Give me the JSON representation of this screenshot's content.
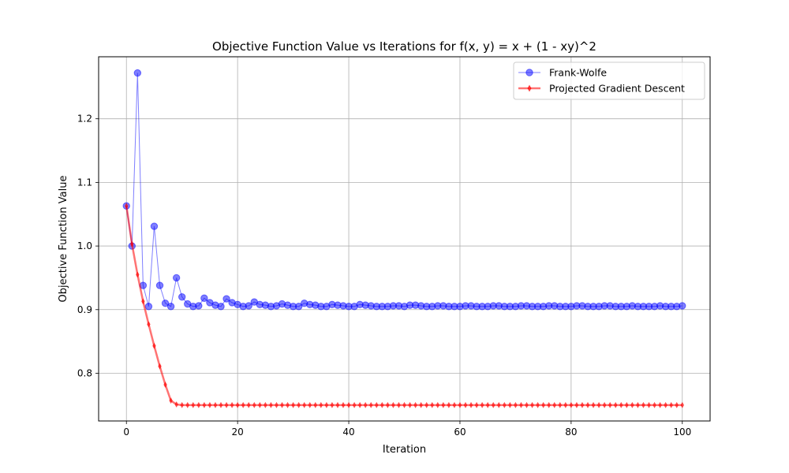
{
  "chart_data": {
    "type": "line",
    "title": "Objective Function Value vs Iterations for f(x, y) = x + (1 - xy)^2",
    "xlabel": "Iteration",
    "ylabel": "Objective Function Value",
    "xlim": [
      -5,
      105
    ],
    "ylim": [
      0.725,
      1.2975
    ],
    "xticks": [
      0,
      20,
      40,
      60,
      80,
      100
    ],
    "xtick_labels": [
      "0",
      "20",
      "40",
      "60",
      "80",
      "100"
    ],
    "yticks": [
      0.8,
      0.9,
      1.0,
      1.1,
      1.2
    ],
    "ytick_labels": [
      "0.8",
      "0.9",
      "1.0",
      "1.1",
      "1.2"
    ],
    "grid": true,
    "legend_position": "upper right",
    "series": [
      {
        "name": "Frank-Wolfe",
        "color": "#0000ff",
        "marker": "circle",
        "x": [
          0,
          1,
          2,
          3,
          4,
          5,
          6,
          7,
          8,
          9,
          10,
          11,
          12,
          13,
          14,
          15,
          16,
          17,
          18,
          19,
          20,
          21,
          22,
          23,
          24,
          25,
          26,
          27,
          28,
          29,
          30,
          31,
          32,
          33,
          34,
          35,
          36,
          37,
          38,
          39,
          40,
          41,
          42,
          43,
          44,
          45,
          46,
          47,
          48,
          49,
          50,
          51,
          52,
          53,
          54,
          55,
          56,
          57,
          58,
          59,
          60,
          61,
          62,
          63,
          64,
          65,
          66,
          67,
          68,
          69,
          70,
          71,
          72,
          73,
          74,
          75,
          76,
          77,
          78,
          79,
          80,
          81,
          82,
          83,
          84,
          85,
          86,
          87,
          88,
          89,
          90,
          91,
          92,
          93,
          94,
          95,
          96,
          97,
          98,
          99,
          100
        ],
        "y": [
          1.063,
          1.0,
          1.272,
          0.938,
          0.905,
          1.031,
          0.938,
          0.91,
          0.905,
          0.95,
          0.92,
          0.909,
          0.905,
          0.906,
          0.918,
          0.911,
          0.907,
          0.905,
          0.917,
          0.911,
          0.908,
          0.905,
          0.906,
          0.912,
          0.908,
          0.907,
          0.905,
          0.906,
          0.909,
          0.907,
          0.905,
          0.905,
          0.91,
          0.908,
          0.907,
          0.905,
          0.905,
          0.908,
          0.907,
          0.906,
          0.905,
          0.905,
          0.908,
          0.907,
          0.906,
          0.905,
          0.905,
          0.905,
          0.906,
          0.906,
          0.905,
          0.907,
          0.907,
          0.906,
          0.905,
          0.905,
          0.906,
          0.906,
          0.905,
          0.905,
          0.905,
          0.906,
          0.906,
          0.905,
          0.905,
          0.905,
          0.906,
          0.906,
          0.905,
          0.905,
          0.905,
          0.906,
          0.906,
          0.905,
          0.905,
          0.905,
          0.906,
          0.906,
          0.905,
          0.905,
          0.905,
          0.906,
          0.906,
          0.905,
          0.905,
          0.905,
          0.906,
          0.906,
          0.905,
          0.905,
          0.905,
          0.906,
          0.905,
          0.905,
          0.905,
          0.905,
          0.906,
          0.905,
          0.905,
          0.905,
          0.906
        ]
      },
      {
        "name": "Projected Gradient Descent",
        "color": "#ff0000",
        "marker": "diamond",
        "x": [
          0,
          1,
          2,
          3,
          4,
          5,
          6,
          7,
          8,
          9,
          10,
          11,
          12,
          13,
          14,
          15,
          16,
          17,
          18,
          19,
          20,
          21,
          22,
          23,
          24,
          25,
          26,
          27,
          28,
          29,
          30,
          31,
          32,
          33,
          34,
          35,
          36,
          37,
          38,
          39,
          40,
          41,
          42,
          43,
          44,
          45,
          46,
          47,
          48,
          49,
          50,
          51,
          52,
          53,
          54,
          55,
          56,
          57,
          58,
          59,
          60,
          61,
          62,
          63,
          64,
          65,
          66,
          67,
          68,
          69,
          70,
          71,
          72,
          73,
          74,
          75,
          76,
          77,
          78,
          79,
          80,
          81,
          82,
          83,
          84,
          85,
          86,
          87,
          88,
          89,
          90,
          91,
          92,
          93,
          94,
          95,
          96,
          97,
          98,
          99,
          100
        ],
        "y": [
          1.063,
          1.003,
          0.955,
          0.913,
          0.877,
          0.843,
          0.811,
          0.782,
          0.757,
          0.751,
          0.75,
          0.75,
          0.75,
          0.75,
          0.75,
          0.75,
          0.75,
          0.75,
          0.75,
          0.75,
          0.75,
          0.75,
          0.75,
          0.75,
          0.75,
          0.75,
          0.75,
          0.75,
          0.75,
          0.75,
          0.75,
          0.75,
          0.75,
          0.75,
          0.75,
          0.75,
          0.75,
          0.75,
          0.75,
          0.75,
          0.75,
          0.75,
          0.75,
          0.75,
          0.75,
          0.75,
          0.75,
          0.75,
          0.75,
          0.75,
          0.75,
          0.75,
          0.75,
          0.75,
          0.75,
          0.75,
          0.75,
          0.75,
          0.75,
          0.75,
          0.75,
          0.75,
          0.75,
          0.75,
          0.75,
          0.75,
          0.75,
          0.75,
          0.75,
          0.75,
          0.75,
          0.75,
          0.75,
          0.75,
          0.75,
          0.75,
          0.75,
          0.75,
          0.75,
          0.75,
          0.75,
          0.75,
          0.75,
          0.75,
          0.75,
          0.75,
          0.75,
          0.75,
          0.75,
          0.75,
          0.75,
          0.75,
          0.75,
          0.75,
          0.75,
          0.75,
          0.75,
          0.75,
          0.75,
          0.75,
          0.75
        ]
      }
    ]
  }
}
